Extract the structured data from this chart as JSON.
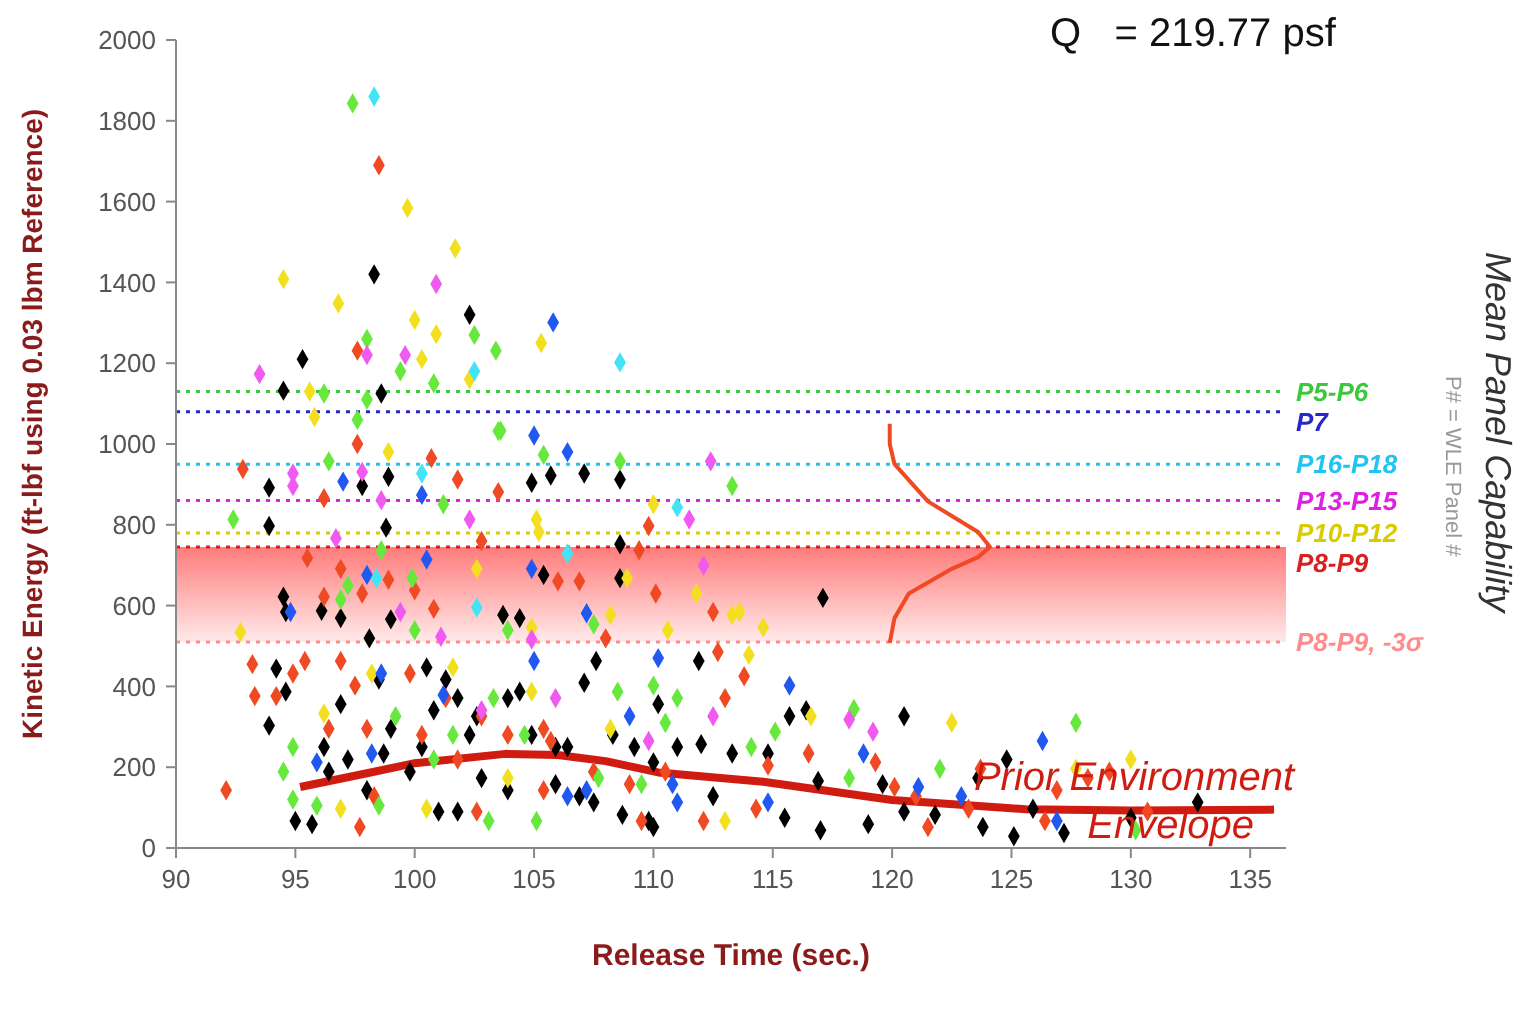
{
  "chart_data": {
    "type": "scatter",
    "xlabel": "Release Time (sec.)",
    "ylabel": "Kinetic Energy (ft-lbf using 0.03 lbm Reference)",
    "xlim": [
      90,
      136.5
    ],
    "xticks": [
      90,
      95,
      100,
      105,
      110,
      115,
      120,
      125,
      130,
      135
    ],
    "ylim": [
      0,
      2000
    ],
    "yticks": [
      0,
      200,
      400,
      600,
      800,
      1000,
      1200,
      1400,
      1600,
      1800,
      2000
    ],
    "grid": false,
    "legend": false,
    "marker": "diamond",
    "series": [
      {
        "color": "#000000",
        "x": [
          94.2,
          94.6,
          93.9,
          94.5,
          94.6,
          93.9,
          93.9,
          96.1,
          96.9,
          97.8,
          98.9,
          98.8,
          99,
          98.1,
          100.5,
          101.8,
          102.6,
          104.4,
          103.7,
          104.9,
          105.7,
          107.1,
          108.6,
          108.6,
          108.6,
          105.4,
          107.6,
          107.1,
          104.4,
          100.8,
          98.5,
          96.9,
          96.2,
          97.2,
          98,
          95,
          95.7,
          99.8,
          101,
          101.8,
          102.8,
          103.9,
          105.9,
          106.9,
          107.5,
          108.7,
          109.8,
          110,
          109.2,
          108.3,
          106.4,
          104.9,
          102.3,
          100.3,
          98.7,
          96.4,
          99,
          101.3,
          103.9,
          105.9,
          110,
          117.1,
          111.9,
          110.2,
          112,
          113.3,
          114.8,
          115.7,
          116.4,
          116.9,
          115.5,
          117,
          119,
          120.5,
          119.6,
          121.8,
          120.5,
          123.6,
          124.8,
          123.8,
          125.1,
          125.9,
          127.2,
          130,
          132.8,
          112.5,
          111,
          98.3,
          102.3,
          95.3,
          94.5,
          98.6
        ],
        "values": [
          444,
          387,
          303,
          622,
          584,
          892,
          797,
          587,
          569,
          896,
          919,
          793,
          566,
          519,
          447,
          371,
          326,
          569,
          577,
          904,
          922,
          927,
          912,
          752,
          668,
          676,
          463,
          409,
          387,
          341,
          417,
          356,
          250,
          219,
          143,
          67,
          59,
          189,
          90,
          90,
          173,
          143,
          158,
          128,
          113,
          82,
          67,
          52,
          250,
          280,
          250,
          280,
          280,
          250,
          234,
          189,
          295,
          417,
          371,
          250,
          212,
          619,
          463,
          356,
          257,
          234,
          234,
          326,
          341,
          166,
          75,
          44,
          59,
          326,
          158,
          82,
          90,
          173,
          219,
          52,
          29,
          97,
          37,
          75,
          113,
          128,
          250,
          1420,
          1320,
          1210,
          1132,
          1125
        ]
      },
      {
        "color": "#f04a24",
        "x": [
          92.1,
          93.2,
          93.3,
          94.2,
          94.9,
          95.4,
          95.5,
          96.2,
          96.9,
          97.6,
          92.8,
          96.2,
          97.8,
          98.9,
          100,
          100.8,
          100.7,
          101.8,
          103.5,
          106,
          106.9,
          108,
          109.4,
          109.8,
          110.1,
          102.8,
          96.9,
          97.5,
          99.8,
          101.3,
          102.8,
          103.9,
          105.4,
          105.7,
          96.4,
          98,
          98.3,
          97.7,
          100.3,
          101.8,
          102.6,
          105.4,
          107.5,
          109,
          109.5,
          110.5,
          112.5,
          112.7,
          113.8,
          113,
          114.8,
          116.5,
          119.3,
          120.1,
          121,
          123.2,
          123.7,
          126.9,
          128.2,
          129.1,
          130.7,
          112.1,
          114.3,
          121.5,
          126.4,
          98.5,
          97.6
        ],
        "values": [
          143,
          455,
          376,
          376,
          432,
          463,
          718,
          622,
          691,
          1000,
          938,
          866,
          630,
          664,
          638,
          592,
          965,
          912,
          881,
          660,
          660,
          519,
          737,
          797,
          630,
          760,
          463,
          402,
          432,
          371,
          326,
          280,
          295,
          265,
          295,
          295,
          128,
          52,
          280,
          219,
          90,
          143,
          189,
          158,
          67,
          189,
          584,
          485,
          425,
          371,
          204,
          234,
          212,
          151,
          128,
          97,
          196,
          143,
          173,
          189,
          90,
          67,
          97,
          52,
          67,
          1690,
          1231
        ]
      },
      {
        "color": "#66e83c",
        "x": [
          92.4,
          96.4,
          98.6,
          99.9,
          101.2,
          103.6,
          105.4,
          108.6,
          108.5,
          94.9,
          94.5,
          94.9,
          95.9,
          98.5,
          100.8,
          101.6,
          103.1,
          104.6,
          105.1,
          107.7,
          109.5,
          96.9,
          97.2,
          100,
          103.9,
          107.5,
          110,
          99.2,
          103.3,
          110.5,
          113.3,
          111,
          118.4,
          127.7,
          122,
          115.1,
          114.1,
          118.2,
          130.2,
          97.4,
          98,
          102.5,
          103.4,
          99.4,
          100.8,
          96.2,
          98,
          97.6,
          103.5
        ],
        "values": [
          813,
          957,
          737,
          668,
          851,
          1033,
          973,
          957,
          387,
          250,
          189,
          120,
          105,
          105,
          219,
          280,
          67,
          280,
          67,
          173,
          158,
          615,
          650,
          539,
          539,
          554,
          402,
          326,
          371,
          310,
          896,
          371,
          344,
          310,
          196,
          288,
          250,
          173,
          44,
          1843,
          1260,
          1270,
          1231,
          1180,
          1150,
          1125,
          1110,
          1060,
          1032
        ]
      },
      {
        "color": "#f2e020",
        "x": [
          92.7,
          98.9,
          105.1,
          105.2,
          104.9,
          102.6,
          108.2,
          108.9,
          110,
          96.2,
          98.2,
          101.6,
          104.9,
          108.2,
          103.9,
          100.5,
          96.9,
          111.8,
          113.3,
          113.6,
          114.6,
          110.6,
          114,
          122.5,
          116.6,
          130,
          127.7,
          113,
          99.7,
          101.7,
          94.5,
          96.8,
          100,
          100.9,
          100.3,
          105.3,
          102.3,
          95.6,
          95.8
        ],
        "values": [
          534,
          980,
          813,
          782,
          546,
          691,
          577,
          668,
          851,
          333,
          432,
          447,
          387,
          295,
          173,
          97,
          97,
          630,
          577,
          584,
          546,
          539,
          478,
          310,
          326,
          219,
          196,
          67,
          1584,
          1484,
          1408,
          1348,
          1307,
          1272,
          1210,
          1250,
          1160,
          1130,
          1067
        ]
      },
      {
        "color": "#2058f0",
        "x": [
          94.8,
          98,
          100.5,
          104.9,
          107.2,
          105,
          106.4,
          97,
          100.3,
          98.6,
          101.2,
          105,
          109,
          95.9,
          98.2,
          106.4,
          107.2,
          110.8,
          115.7,
          118.8,
          121.1,
          122.9,
          126.3,
          126.9,
          111,
          114.8,
          110.2,
          105.8
        ],
        "values": [
          584,
          676,
          714,
          691,
          581,
          1021,
          980,
          907,
          874,
          432,
          379,
          463,
          326,
          212,
          234,
          128,
          143,
          158,
          402,
          234,
          151,
          128,
          265,
          67,
          113,
          113,
          470,
          1301
        ]
      },
      {
        "color": "#f05af0",
        "x": [
          94.9,
          94.9,
          97.8,
          98.6,
          102.3,
          96.7,
          99.4,
          101.1,
          104.9,
          105.9,
          102.8,
          109.8,
          112.4,
          111.5,
          112.1,
          119.2,
          118.2,
          112.5,
          100.9,
          98,
          99.6,
          93.5
        ],
        "values": [
          927,
          896,
          931,
          861,
          813,
          767,
          584,
          523,
          516,
          371,
          341,
          265,
          957,
          813,
          699,
          288,
          318,
          326,
          1396,
          1220,
          1220,
          1173
        ]
      },
      {
        "color": "#44e4f8",
        "x": [
          100.3,
          98.4,
          102.6,
          106.4,
          111,
          98.3,
          108.6,
          102.5
        ],
        "values": [
          927,
          668,
          595,
          729,
          843,
          1860,
          1202,
          1180
        ]
      },
      {
        "type": "line",
        "marker": "none",
        "color": "#f04a24",
        "x": [
          119.9,
          119.9,
          120.1,
          121.5,
          123.6,
          124.1,
          123.6,
          122.5,
          120.7,
          120.1,
          119.9
        ],
        "values": [
          1050,
          1000,
          950,
          858,
          782,
          745,
          720,
          691,
          630,
          569,
          508
        ]
      },
      {
        "type": "line",
        "marker": "none",
        "name": "Prior Environment Envelope",
        "color": "#d01c10",
        "x": [
          95.2,
          98,
          100,
          103.8,
          106,
          108,
          110.2,
          114.6,
          120,
          125.6,
          130,
          136
        ],
        "values": [
          151,
          185,
          210,
          233,
          230,
          215,
          187,
          164,
          119,
          96,
          93,
          95
        ]
      }
    ],
    "ref_lines": [
      {
        "axis": "y",
        "value": 1130,
        "label": "P5-P6",
        "color": "#3cc83c",
        "line_style": "dotted"
      },
      {
        "axis": "y",
        "value": 1080,
        "label": "P7",
        "color": "#2828c8",
        "line_style": "dotted"
      },
      {
        "axis": "y",
        "value": 950,
        "label": "P16-P18",
        "color": "#20c4f0",
        "line_style": "dotted"
      },
      {
        "axis": "y",
        "value": 860,
        "label": "P13-P15",
        "color": "#e020e0",
        "line_style": "dotted"
      },
      {
        "axis": "y",
        "value": 780,
        "label": "P10-P12",
        "color": "#d8cc00",
        "line_style": "dotted"
      },
      {
        "axis": "y",
        "value": 745,
        "label": "P8-P9",
        "color": "#d82020",
        "line_style": "dotted"
      },
      {
        "axis": "y",
        "value": 510,
        "label": "P8-P9, -3σ",
        "color": "#ff8c8c",
        "line_style": "dotted"
      }
    ],
    "bands": [
      {
        "axis": "y",
        "from": 510,
        "to": 745,
        "color": "#ff5050"
      }
    ],
    "annotations": [
      "Q   = 219.77 psf",
      "Mean Panel Capability",
      "P# = WLE Panel #"
    ]
  }
}
